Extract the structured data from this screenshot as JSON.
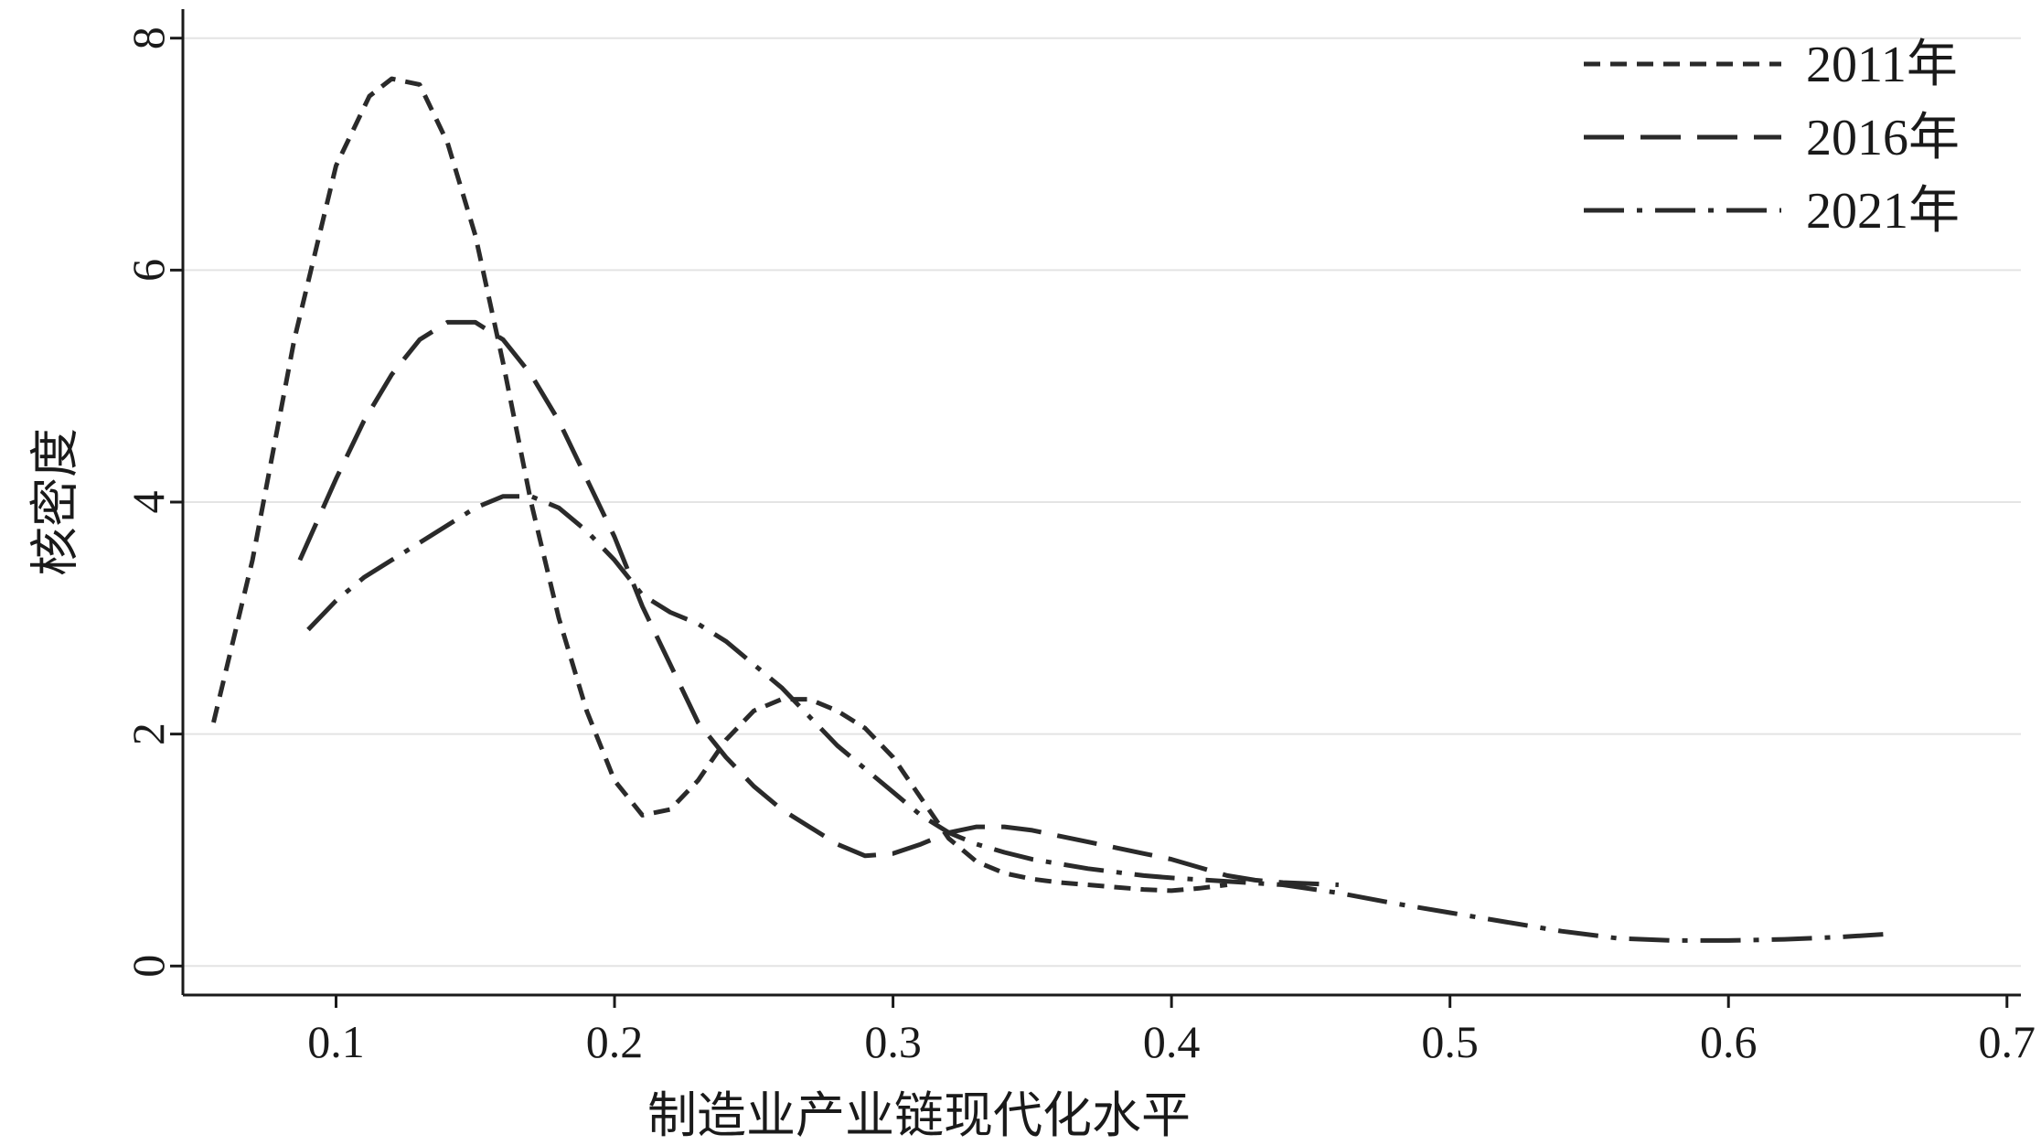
{
  "chart_data": {
    "type": "line",
    "title": "",
    "xlabel": "制造业产业链现代化水平",
    "ylabel": "核密度",
    "xlim": [
      0.045,
      0.705
    ],
    "ylim": [
      -0.25,
      8.25
    ],
    "x_ticks": [
      0.1,
      0.2,
      0.3,
      0.4,
      0.5,
      0.6,
      0.7
    ],
    "x_tick_labels": [
      "0.1",
      "0.2",
      "0.3",
      "0.4",
      "0.5",
      "0.6",
      "0.7"
    ],
    "y_ticks": [
      0,
      2,
      4,
      6,
      8
    ],
    "y_tick_labels": [
      "0",
      "2",
      "4",
      "6",
      "8"
    ],
    "grid": "horizontal",
    "legend_position": "top-right",
    "series": [
      {
        "name": "2011年",
        "dash": "short-dash",
        "x": [
          0.056,
          0.07,
          0.085,
          0.1,
          0.112,
          0.12,
          0.13,
          0.14,
          0.15,
          0.16,
          0.17,
          0.18,
          0.19,
          0.2,
          0.21,
          0.22,
          0.23,
          0.24,
          0.25,
          0.26,
          0.27,
          0.28,
          0.29,
          0.3,
          0.31,
          0.32,
          0.33,
          0.34,
          0.35,
          0.36,
          0.37,
          0.38,
          0.39,
          0.4,
          0.41,
          0.42
        ],
        "y": [
          2.1,
          3.5,
          5.4,
          6.9,
          7.5,
          7.65,
          7.6,
          7.1,
          6.3,
          5.2,
          4.0,
          3.0,
          2.2,
          1.6,
          1.3,
          1.35,
          1.6,
          1.95,
          2.2,
          2.3,
          2.3,
          2.2,
          2.05,
          1.8,
          1.45,
          1.1,
          0.9,
          0.8,
          0.75,
          0.72,
          0.7,
          0.68,
          0.66,
          0.65,
          0.67,
          0.7
        ]
      },
      {
        "name": "2016年",
        "dash": "long-dash",
        "x": [
          0.087,
          0.1,
          0.11,
          0.12,
          0.13,
          0.14,
          0.15,
          0.16,
          0.17,
          0.18,
          0.19,
          0.2,
          0.21,
          0.22,
          0.23,
          0.24,
          0.25,
          0.26,
          0.27,
          0.28,
          0.29,
          0.3,
          0.31,
          0.32,
          0.33,
          0.34,
          0.35,
          0.36,
          0.37,
          0.38,
          0.39,
          0.4,
          0.41,
          0.42,
          0.43,
          0.44,
          0.45,
          0.46
        ],
        "y": [
          3.5,
          4.2,
          4.7,
          5.1,
          5.4,
          5.55,
          5.55,
          5.4,
          5.1,
          4.7,
          4.2,
          3.7,
          3.1,
          2.6,
          2.1,
          1.8,
          1.55,
          1.35,
          1.2,
          1.05,
          0.95,
          0.97,
          1.05,
          1.15,
          1.2,
          1.2,
          1.17,
          1.12,
          1.07,
          1.02,
          0.97,
          0.92,
          0.85,
          0.78,
          0.74,
          0.72,
          0.71,
          0.7
        ]
      },
      {
        "name": "2021年",
        "dash": "dash-dot",
        "x": [
          0.09,
          0.1,
          0.11,
          0.12,
          0.13,
          0.14,
          0.15,
          0.16,
          0.17,
          0.18,
          0.19,
          0.2,
          0.21,
          0.22,
          0.23,
          0.24,
          0.25,
          0.26,
          0.27,
          0.28,
          0.29,
          0.3,
          0.31,
          0.32,
          0.33,
          0.34,
          0.35,
          0.36,
          0.37,
          0.38,
          0.39,
          0.4,
          0.42,
          0.44,
          0.46,
          0.48,
          0.5,
          0.52,
          0.54,
          0.56,
          0.58,
          0.6,
          0.62,
          0.64,
          0.66
        ],
        "y": [
          2.9,
          3.15,
          3.35,
          3.5,
          3.65,
          3.8,
          3.95,
          4.05,
          4.05,
          3.95,
          3.75,
          3.5,
          3.2,
          3.05,
          2.95,
          2.8,
          2.6,
          2.4,
          2.15,
          1.9,
          1.7,
          1.5,
          1.3,
          1.15,
          1.05,
          0.98,
          0.92,
          0.88,
          0.84,
          0.81,
          0.78,
          0.76,
          0.73,
          0.7,
          0.63,
          0.54,
          0.46,
          0.38,
          0.3,
          0.24,
          0.22,
          0.22,
          0.23,
          0.25,
          0.28
        ]
      }
    ]
  }
}
